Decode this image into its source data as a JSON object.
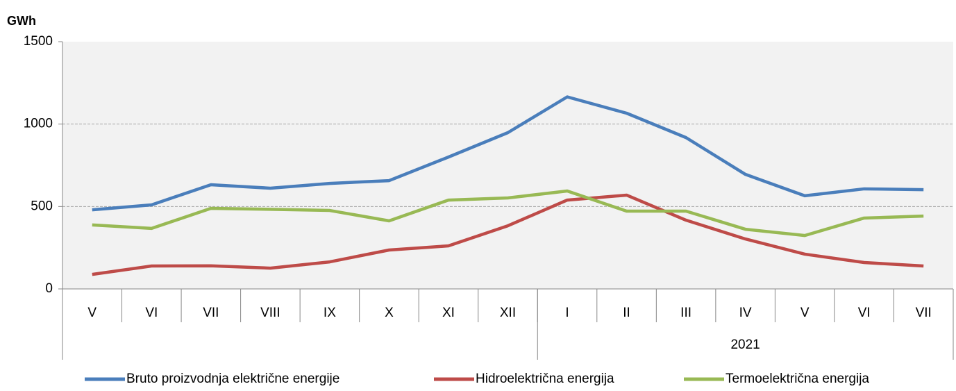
{
  "chart_data": {
    "type": "line",
    "ylabel": "GWh",
    "categories": [
      "V",
      "VI",
      "VII",
      "VIII",
      "IX",
      "X",
      "XI",
      "XII",
      "I",
      "II",
      "III",
      "IV",
      "V",
      "VI",
      "VII"
    ],
    "groups": [
      {
        "label": null,
        "count": 8
      },
      {
        "label": "2021",
        "count": 7
      }
    ],
    "series": [
      {
        "name": "Bruto proizvodnja električne energije",
        "color": "#4a7ebb",
        "values": [
          480,
          510,
          632,
          611,
          640,
          657,
          800,
          948,
          1165,
          1066,
          918,
          695,
          565,
          607,
          602
        ]
      },
      {
        "name": "Hidroelektrična energija",
        "color": "#be4b48",
        "values": [
          88,
          139,
          140,
          126,
          164,
          236,
          261,
          383,
          539,
          569,
          417,
          303,
          211,
          160,
          139
        ]
      },
      {
        "name": "Termoelektrična energija",
        "color": "#98b954",
        "values": [
          388,
          367,
          489,
          483,
          476,
          413,
          539,
          552,
          594,
          472,
          472,
          362,
          324,
          430,
          442
        ]
      }
    ],
    "ylim": [
      0,
      1500
    ],
    "yticks": [
      0,
      500,
      1000,
      1500
    ],
    "grid": true,
    "legend": "bottom"
  }
}
